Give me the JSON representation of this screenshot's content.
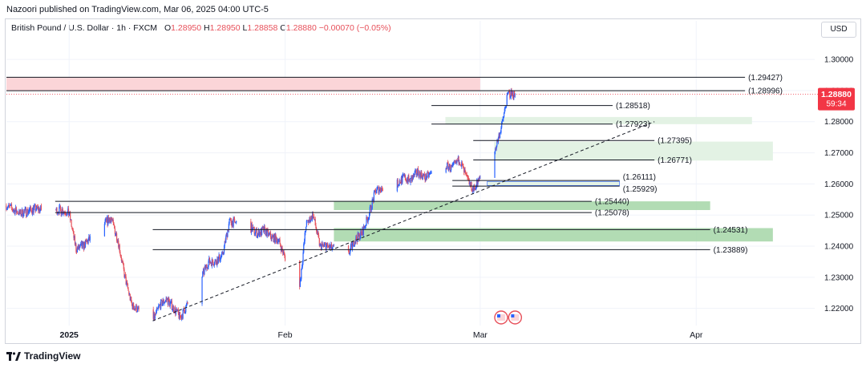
{
  "publisher_line": "Nazoori published on TradingView.com, Mar 06, 2025 04:00 UTC-5",
  "legend": {
    "symbol": "British Pound / U.S. Dollar · 1h · FXCM",
    "open_label": "O",
    "open": "1.28950",
    "high_label": "H",
    "high": "1.28950",
    "low_label": "L",
    "low": "1.28858",
    "close_label": "C",
    "close": "1.28880",
    "change": "−0.00070 (−0.05%)"
  },
  "currency_button": "USD",
  "price_tag": {
    "price": "1.28880",
    "countdown": "59:34"
  },
  "footer_brand": "TradingView",
  "colors": {
    "up": "#2962ff",
    "down": "#e7505a",
    "tag": "#f23645",
    "supply_zone": "#fbd5d8",
    "demand_light": "#e3f2e4",
    "demand_strong": "#a5d6a7",
    "grid": "#f0f3fa",
    "level_line": "#131722"
  },
  "chart_data": {
    "type": "candlestick",
    "title": "British Pound / U.S. Dollar · 1h · FXCM",
    "x_ticks": [
      "2025",
      "Feb",
      "Mar",
      "Apr"
    ],
    "y_ticks": [
      "1.22000",
      "1.23000",
      "1.24000",
      "1.25000",
      "1.26000",
      "1.27000",
      "1.28000",
      "1.29000",
      "1.30000"
    ],
    "y_range": [
      1.2145,
      1.3075
    ],
    "x_range_days": [
      "2024-12-23",
      "2025-04-18"
    ],
    "current_price": 1.2888,
    "levels": [
      {
        "label": "(1.29427)",
        "value": 1.29427
      },
      {
        "label": "(1.28996)",
        "value": 1.28996
      },
      {
        "label": "(1.28518)",
        "value": 1.28518
      },
      {
        "label": "(1.27923)",
        "value": 1.27923
      },
      {
        "label": "(1.27395)",
        "value": 1.27395
      },
      {
        "label": "(1.26771)",
        "value": 1.26771
      },
      {
        "label": "(1.26111)",
        "value": 1.26111
      },
      {
        "label": "(1.25929)",
        "value": 1.25929
      },
      {
        "label": "(1.25440)",
        "value": 1.2544
      },
      {
        "label": "(1.25078)",
        "value": 1.25078
      },
      {
        "label": "(1.24531)",
        "value": 1.24531
      },
      {
        "label": "(1.23889)",
        "value": 1.23889
      }
    ],
    "zones": [
      {
        "kind": "supply",
        "low": 1.28996,
        "high": 1.29427
      },
      {
        "kind": "demand",
        "low": 1.2792,
        "high": 1.2815
      },
      {
        "kind": "demand",
        "low": 1.2675,
        "high": 1.2736
      },
      {
        "kind": "demand",
        "low": 1.2595,
        "high": 1.2608
      },
      {
        "kind": "demand-strong",
        "low": 1.2516,
        "high": 1.2544
      },
      {
        "kind": "demand-strong",
        "low": 1.2415,
        "high": 1.2458
      }
    ],
    "trendline": {
      "from": {
        "date": "2025-01-13",
        "price": 1.216
      },
      "to": {
        "date": "2025-03-26",
        "price": 1.28
      }
    },
    "price_path": [
      [
        "2024-12-23",
        1.253
      ],
      [
        "2024-12-25",
        1.2505
      ],
      [
        "2024-12-27",
        1.252
      ],
      [
        "2024-12-30",
        1.2515
      ],
      [
        "2024-12-31",
        1.2516
      ],
      [
        "2025-01-01",
        1.2505
      ],
      [
        "2025-01-02",
        1.239
      ],
      [
        "2025-01-03",
        1.24
      ],
      [
        "2025-01-06",
        1.247
      ],
      [
        "2025-01-07",
        1.249
      ],
      [
        "2025-01-08",
        1.242
      ],
      [
        "2025-01-09",
        1.23
      ],
      [
        "2025-01-10",
        1.221
      ],
      [
        "2025-01-13",
        1.216
      ],
      [
        "2025-01-14",
        1.221
      ],
      [
        "2025-01-15",
        1.223
      ],
      [
        "2025-01-16",
        1.22
      ],
      [
        "2025-01-17",
        1.217
      ],
      [
        "2025-01-20",
        1.23
      ],
      [
        "2025-01-21",
        1.235
      ],
      [
        "2025-01-22",
        1.235
      ],
      [
        "2025-01-23",
        1.237
      ],
      [
        "2025-01-24",
        1.248
      ],
      [
        "2025-01-27",
        1.246
      ],
      [
        "2025-01-28",
        1.244
      ],
      [
        "2025-01-29",
        1.245
      ],
      [
        "2025-01-30",
        1.243
      ],
      [
        "2025-01-31",
        1.242
      ],
      [
        "2025-02-03",
        1.225
      ],
      [
        "2025-02-04",
        1.247
      ],
      [
        "2025-02-05",
        1.25
      ],
      [
        "2025-02-06",
        1.24
      ],
      [
        "2025-02-07",
        1.24
      ],
      [
        "2025-02-10",
        1.237
      ],
      [
        "2025-02-11",
        1.242
      ],
      [
        "2025-02-12",
        1.244
      ],
      [
        "2025-02-13",
        1.25
      ],
      [
        "2025-02-14",
        1.258
      ],
      [
        "2025-02-17",
        1.26
      ],
      [
        "2025-02-18",
        1.262
      ],
      [
        "2025-02-19",
        1.261
      ],
      [
        "2025-02-20",
        1.264
      ],
      [
        "2025-02-21",
        1.262
      ],
      [
        "2025-02-24",
        1.266
      ],
      [
        "2025-02-25",
        1.265
      ],
      [
        "2025-02-26",
        1.268
      ],
      [
        "2025-02-27",
        1.262
      ],
      [
        "2025-02-28",
        1.258
      ],
      [
        "2025-03-03",
        1.27
      ],
      [
        "2025-03-04",
        1.278
      ],
      [
        "2025-03-05",
        1.289
      ],
      [
        "2025-03-06",
        1.2888
      ]
    ]
  }
}
